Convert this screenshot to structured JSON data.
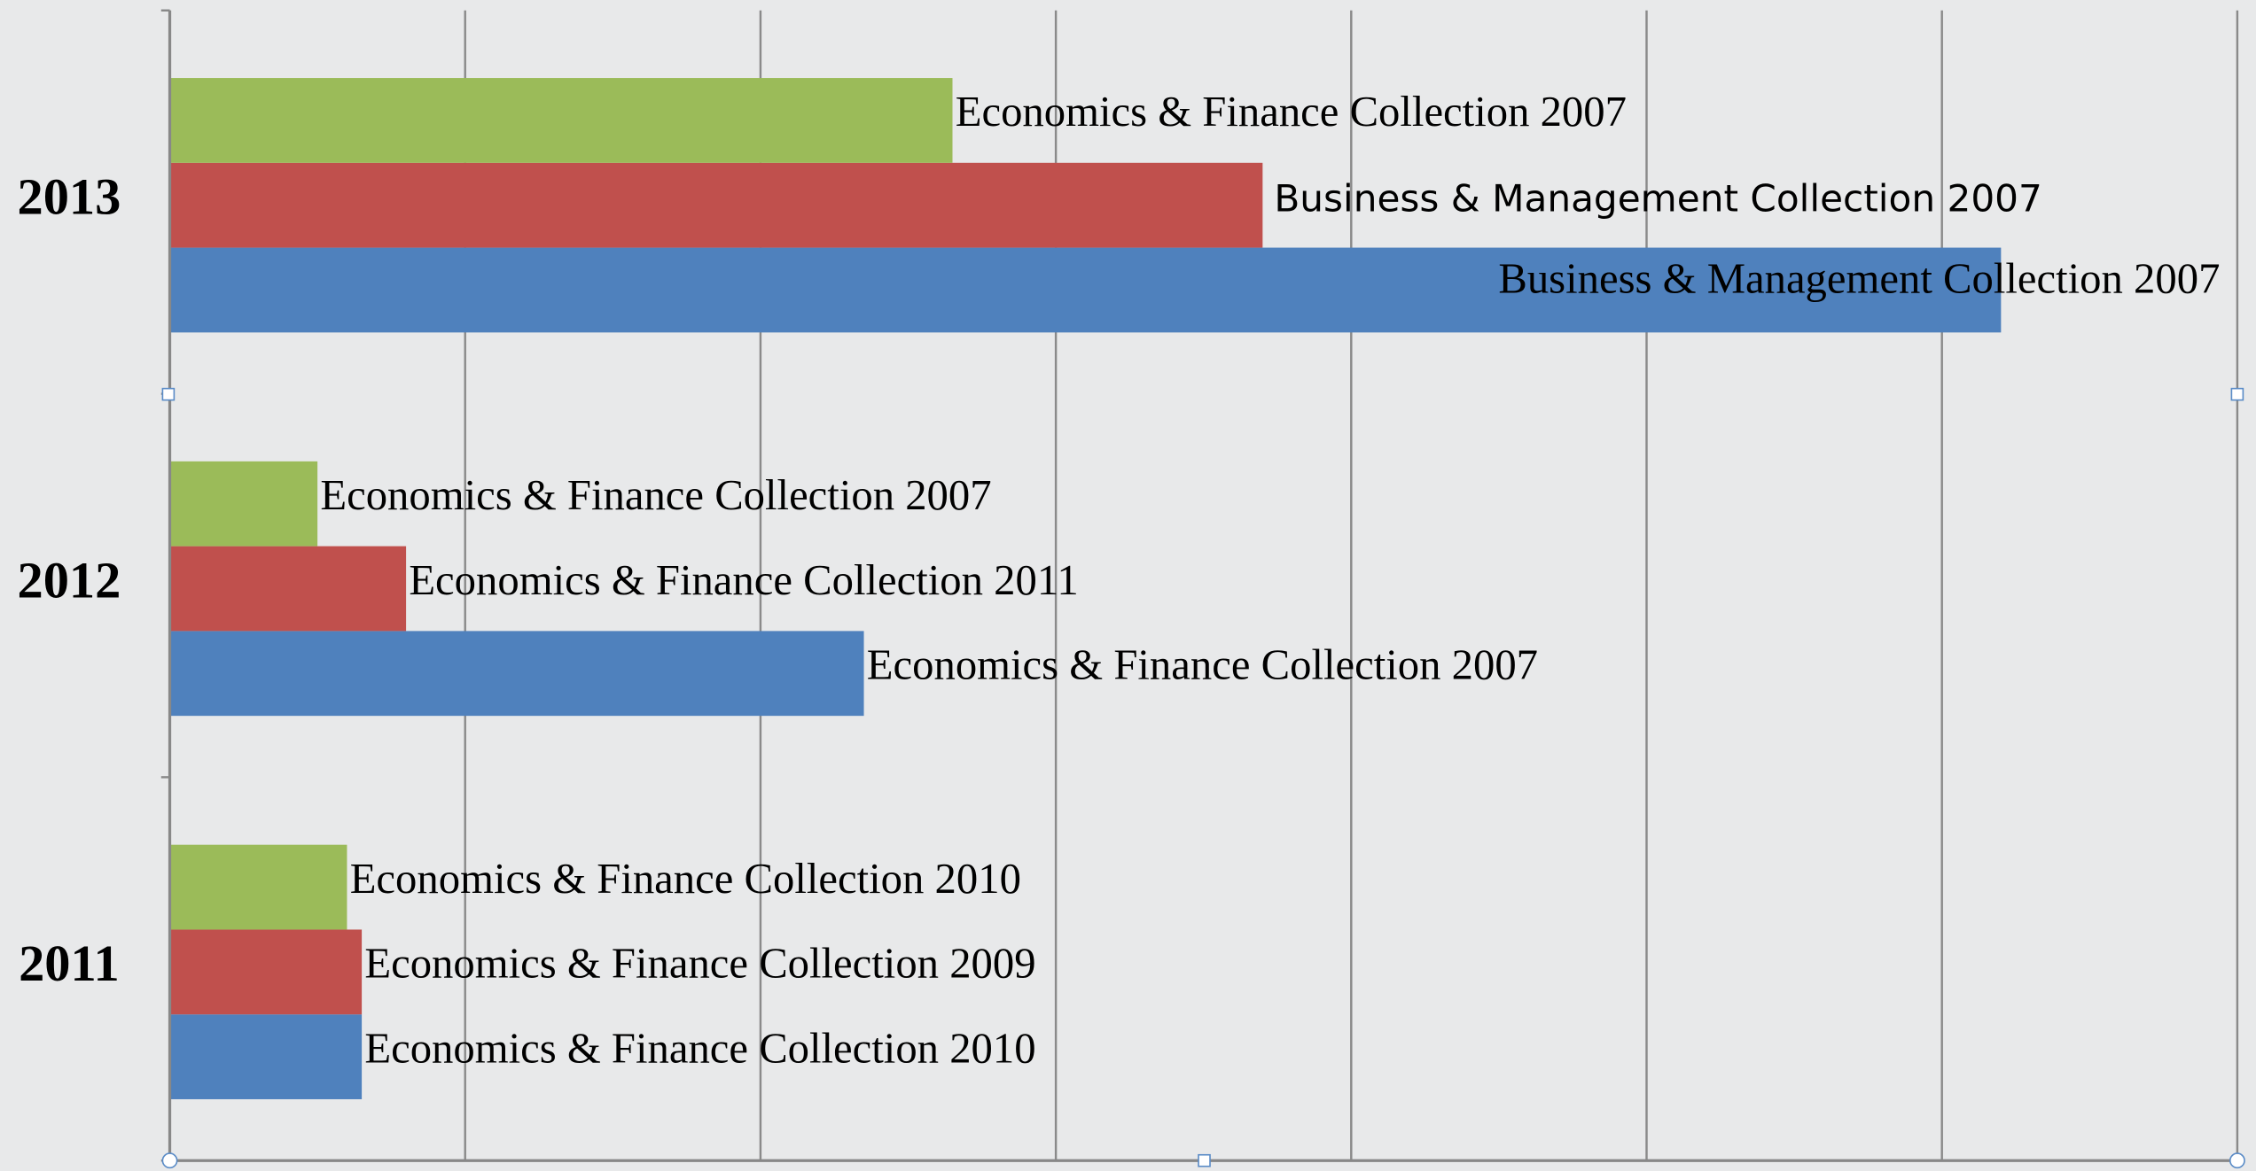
{
  "chart_data": {
    "type": "hbar",
    "categories": [
      "2011",
      "2012",
      "2013"
    ],
    "series": [
      {
        "color": "#4f81bd",
        "values": [
          0.65,
          2.35,
          6.2
        ],
        "labels": [
          "Economics & Finance Collection 2010",
          "Economics & Finance Collection 2007",
          "Business & Management Collection 2007"
        ]
      },
      {
        "color": "#c0504d",
        "values": [
          0.65,
          0.8,
          3.7
        ],
        "labels": [
          "Economics & Finance Collection 2009",
          "Economics & Finance Collection 2011",
          "Business & Management Collection 2007"
        ]
      },
      {
        "color": "#9bbb59",
        "values": [
          0.6,
          0.5,
          2.65
        ],
        "labels": [
          "Economics & Finance Collection 2010",
          "Economics & Finance Collection 2007",
          "Economics & Finance Collection 2007"
        ]
      }
    ],
    "xlim": [
      0,
      7
    ],
    "xticks": [
      0,
      1,
      2,
      3,
      4,
      5,
      6,
      7
    ],
    "grid": true
  }
}
